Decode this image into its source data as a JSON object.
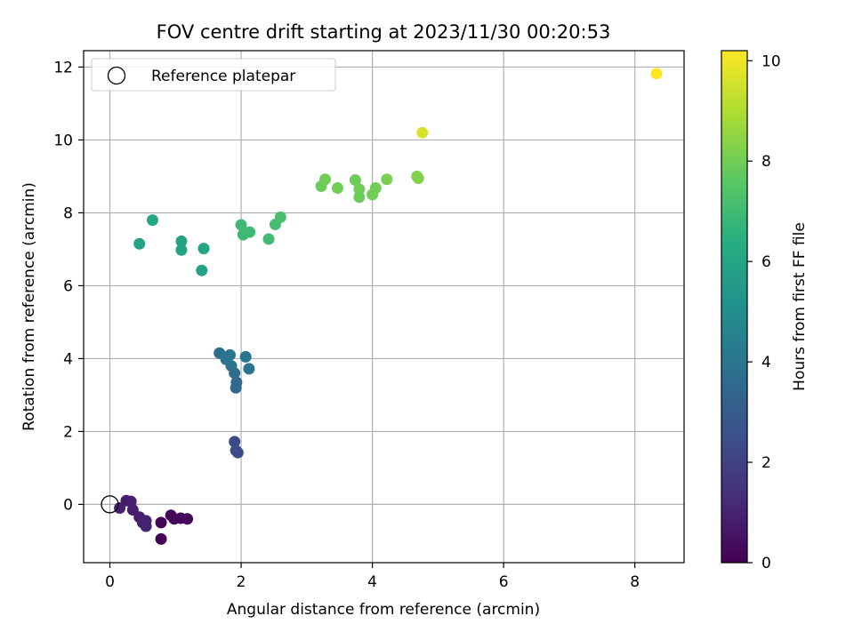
{
  "chart_data": {
    "type": "scatter",
    "title": "FOV centre drift starting at 2023/11/30 00:20:53",
    "xlabel": "Angular distance from reference (arcmin)",
    "ylabel": "Rotation from reference (arcmin)",
    "xlim": [
      -0.4,
      8.75
    ],
    "ylim": [
      -1.6,
      12.45
    ],
    "xticks": [
      0,
      2,
      4,
      6,
      8
    ],
    "yticks": [
      0,
      2,
      4,
      6,
      8,
      10,
      12
    ],
    "grid": true,
    "legend": {
      "placement": "top-left",
      "entries": [
        {
          "label": "Reference platepar",
          "marker": "open-circle"
        }
      ]
    },
    "reference_point": {
      "x": 0,
      "y": 0
    },
    "colorbar": {
      "label": "Hours from first FF file",
      "colormap": "viridis",
      "range": [
        0,
        10.2
      ],
      "ticks": [
        0,
        2,
        4,
        6,
        8,
        10
      ]
    },
    "points": [
      {
        "x": 0.15,
        "y": -0.1,
        "c": 0.9
      },
      {
        "x": 0.25,
        "y": 0.1,
        "c": 0.8
      },
      {
        "x": 0.32,
        "y": 0.08,
        "c": 0.85
      },
      {
        "x": 0.35,
        "y": -0.15,
        "c": 0.9
      },
      {
        "x": 0.45,
        "y": -0.35,
        "c": 0.85
      },
      {
        "x": 0.5,
        "y": -0.5,
        "c": 0.9
      },
      {
        "x": 0.55,
        "y": -0.6,
        "c": 1.0
      },
      {
        "x": 0.55,
        "y": -0.45,
        "c": 1.0
      },
      {
        "x": 0.78,
        "y": -0.5,
        "c": 0.1
      },
      {
        "x": 0.78,
        "y": -0.95,
        "c": 0.05
      },
      {
        "x": 0.93,
        "y": -0.3,
        "c": 0.2
      },
      {
        "x": 0.98,
        "y": -0.4,
        "c": 0.15
      },
      {
        "x": 1.08,
        "y": -0.38,
        "c": 0.2
      },
      {
        "x": 1.18,
        "y": -0.4,
        "c": 0.25
      },
      {
        "x": 1.9,
        "y": 1.72,
        "c": 2.3
      },
      {
        "x": 1.92,
        "y": 1.48,
        "c": 2.4
      },
      {
        "x": 1.95,
        "y": 1.42,
        "c": 2.35
      },
      {
        "x": 1.67,
        "y": 4.15,
        "c": 3.8
      },
      {
        "x": 1.77,
        "y": 3.98,
        "c": 3.9
      },
      {
        "x": 1.83,
        "y": 4.1,
        "c": 4.0
      },
      {
        "x": 1.85,
        "y": 3.8,
        "c": 3.9
      },
      {
        "x": 1.9,
        "y": 3.6,
        "c": 3.7
      },
      {
        "x": 1.93,
        "y": 3.35,
        "c": 3.5
      },
      {
        "x": 1.92,
        "y": 3.2,
        "c": 3.4
      },
      {
        "x": 2.07,
        "y": 4.05,
        "c": 4.0
      },
      {
        "x": 2.12,
        "y": 3.72,
        "c": 3.9
      },
      {
        "x": 0.45,
        "y": 7.15,
        "c": 5.9
      },
      {
        "x": 0.65,
        "y": 7.8,
        "c": 6.1
      },
      {
        "x": 1.09,
        "y": 7.22,
        "c": 5.9
      },
      {
        "x": 1.09,
        "y": 6.98,
        "c": 6.0
      },
      {
        "x": 1.4,
        "y": 6.42,
        "c": 5.8
      },
      {
        "x": 1.43,
        "y": 7.02,
        "c": 6.0
      },
      {
        "x": 2.0,
        "y": 7.67,
        "c": 6.9
      },
      {
        "x": 2.03,
        "y": 7.4,
        "c": 6.9
      },
      {
        "x": 2.13,
        "y": 7.47,
        "c": 6.95
      },
      {
        "x": 2.42,
        "y": 7.28,
        "c": 7.0
      },
      {
        "x": 2.52,
        "y": 7.68,
        "c": 7.1
      },
      {
        "x": 2.6,
        "y": 7.88,
        "c": 7.2
      },
      {
        "x": 3.22,
        "y": 8.73,
        "c": 7.9
      },
      {
        "x": 3.28,
        "y": 8.92,
        "c": 8.0
      },
      {
        "x": 3.47,
        "y": 8.68,
        "c": 8.0
      },
      {
        "x": 3.74,
        "y": 8.9,
        "c": 7.95
      },
      {
        "x": 3.8,
        "y": 8.65,
        "c": 8.0
      },
      {
        "x": 3.8,
        "y": 8.43,
        "c": 7.9
      },
      {
        "x": 4.0,
        "y": 8.5,
        "c": 8.0
      },
      {
        "x": 4.05,
        "y": 8.68,
        "c": 8.0
      },
      {
        "x": 4.22,
        "y": 8.92,
        "c": 8.1
      },
      {
        "x": 4.68,
        "y": 9.0,
        "c": 8.2
      },
      {
        "x": 4.7,
        "y": 8.95,
        "c": 8.3
      },
      {
        "x": 4.76,
        "y": 10.2,
        "c": 9.6
      },
      {
        "x": 8.33,
        "y": 11.82,
        "c": 10.2
      }
    ]
  }
}
